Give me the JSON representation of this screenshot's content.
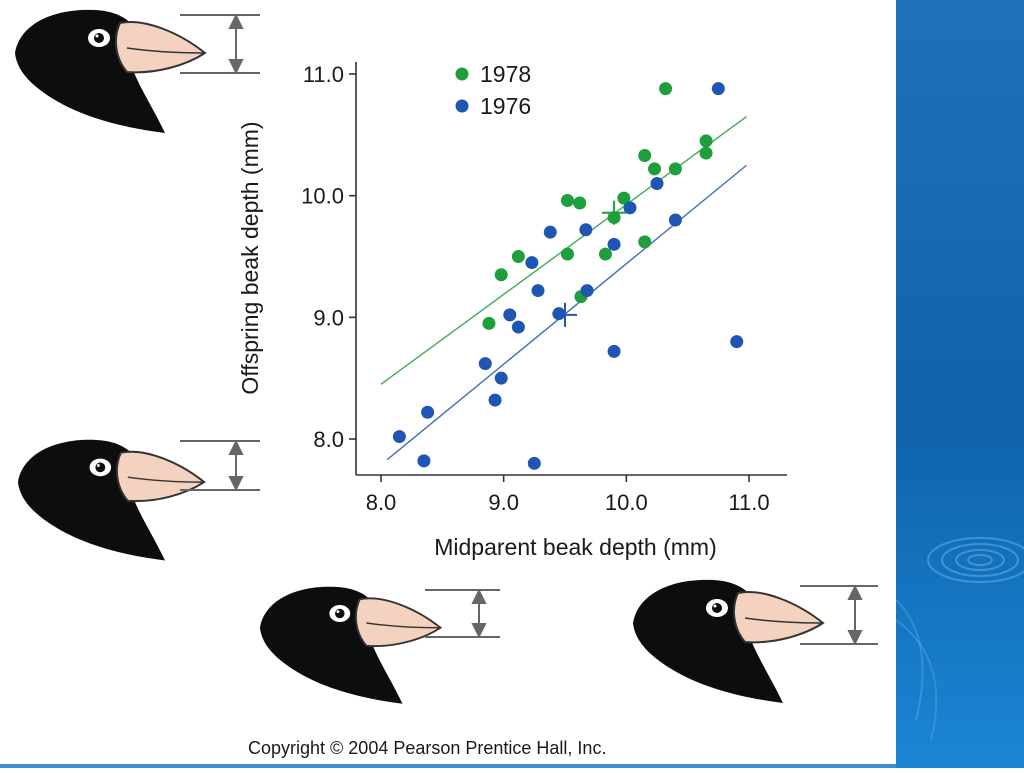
{
  "slide": {
    "copyright": "Copyright © 2004 Pearson Prentice Hall, Inc.",
    "panel_color": "#1268b3"
  },
  "chart_data": {
    "type": "scatter",
    "xlabel": "Midparent beak depth (mm)",
    "ylabel": "Offspring beak depth (mm)",
    "xlim": [
      7.8,
      11.3
    ],
    "ylim": [
      7.7,
      11.1
    ],
    "xticks": [
      "8.0",
      "9.0",
      "10.0",
      "11.0"
    ],
    "yticks": [
      "8.0",
      "9.0",
      "10.0",
      "11.0"
    ],
    "grid": false,
    "legend_position": "top-left",
    "series": [
      {
        "name": "1978",
        "color": "#1f9e3c",
        "points": [
          [
            8.88,
            8.95
          ],
          [
            8.98,
            9.35
          ],
          [
            9.12,
            9.5
          ],
          [
            9.52,
            9.96
          ],
          [
            9.62,
            9.94
          ],
          [
            9.52,
            9.52
          ],
          [
            9.63,
            9.17
          ],
          [
            9.83,
            9.52
          ],
          [
            9.9,
            9.82
          ],
          [
            9.98,
            9.98
          ],
          [
            10.15,
            9.62
          ],
          [
            10.15,
            10.33
          ],
          [
            10.23,
            10.22
          ],
          [
            10.32,
            10.88
          ],
          [
            10.4,
            10.22
          ],
          [
            10.65,
            10.45
          ],
          [
            10.65,
            10.35
          ]
        ],
        "mean": [
          9.9,
          9.86
        ],
        "fit": {
          "x": [
            8.0,
            10.98
          ],
          "y": [
            8.45,
            10.65
          ]
        }
      },
      {
        "name": "1976",
        "color": "#1f55b3",
        "points": [
          [
            8.15,
            8.02
          ],
          [
            8.38,
            8.22
          ],
          [
            8.35,
            7.82
          ],
          [
            8.85,
            8.62
          ],
          [
            8.93,
            8.32
          ],
          [
            8.98,
            8.5
          ],
          [
            9.05,
            9.02
          ],
          [
            9.12,
            8.92
          ],
          [
            9.23,
            9.45
          ],
          [
            9.28,
            9.22
          ],
          [
            9.25,
            7.8
          ],
          [
            9.38,
            9.7
          ],
          [
            9.45,
            9.03
          ],
          [
            9.67,
            9.72
          ],
          [
            9.68,
            9.22
          ],
          [
            9.9,
            9.6
          ],
          [
            9.9,
            8.72
          ],
          [
            10.03,
            9.9
          ],
          [
            10.25,
            10.1
          ],
          [
            10.4,
            9.8
          ],
          [
            10.75,
            10.88
          ],
          [
            10.9,
            8.8
          ]
        ],
        "mean": [
          9.5,
          9.02
        ],
        "fit": {
          "x": [
            8.05,
            10.98
          ],
          "y": [
            7.83,
            10.25
          ]
        }
      }
    ]
  }
}
